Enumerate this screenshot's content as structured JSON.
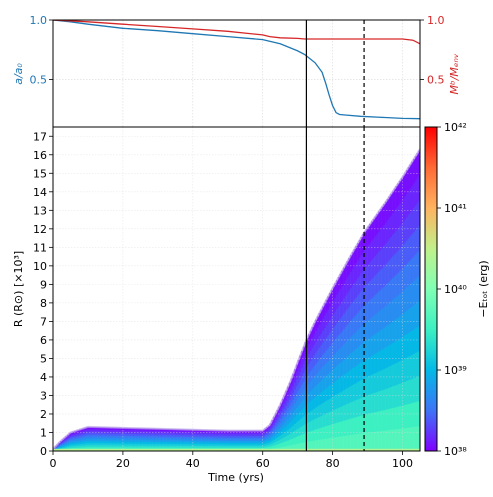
{
  "chart_data": [
    {
      "type": "line",
      "panel": "top",
      "xlim": [
        0,
        105
      ],
      "ylim_left": [
        0.1,
        1.0
      ],
      "ylim_right": [
        0.1,
        1.0
      ],
      "yticks_left": [
        "0.5",
        "1.0"
      ],
      "yticks_left_values": [
        0.5,
        1.0
      ],
      "yticks_right": [
        "0.5",
        "1.0"
      ],
      "yticks_right_values": [
        0.5,
        1.0
      ],
      "ylabel_left": "a/a₀",
      "ylabel_right": "Mᵇ/Mₑₙᵥ",
      "ylabel_left_color": "#1f77b4",
      "ylabel_right_color": "#d62728",
      "grid": true,
      "series": [
        {
          "color": "#1f77b4",
          "x": [
            0,
            5,
            10,
            20,
            30,
            40,
            50,
            60,
            65,
            70,
            72,
            75,
            77,
            78,
            79,
            80,
            81,
            82,
            84,
            88,
            95,
            100,
            105
          ],
          "y": [
            1.0,
            0.985,
            0.965,
            0.93,
            0.91,
            0.885,
            0.86,
            0.835,
            0.8,
            0.74,
            0.71,
            0.64,
            0.56,
            0.47,
            0.37,
            0.28,
            0.22,
            0.205,
            0.2,
            0.19,
            0.18,
            0.172,
            0.17
          ]
        },
        {
          "color": "#d62728",
          "x": [
            0,
            10,
            20,
            30,
            40,
            50,
            55,
            60,
            62,
            65,
            70,
            72,
            75,
            80,
            85,
            90,
            95,
            100,
            103,
            105
          ],
          "y": [
            1.0,
            0.985,
            0.965,
            0.945,
            0.925,
            0.905,
            0.89,
            0.875,
            0.86,
            0.85,
            0.845,
            0.84,
            0.84,
            0.84,
            0.84,
            0.84,
            0.84,
            0.84,
            0.83,
            0.8
          ]
        }
      ],
      "vlines": [
        {
          "x": 72.5,
          "style": "solid",
          "color": "#000000"
        },
        {
          "x": 89,
          "style": "dashed",
          "color": "#000000"
        }
      ]
    },
    {
      "type": "heatmap",
      "panel": "bottom",
      "xlabel": "Time (yrs)",
      "ylabel": "R (R⊙) [×10³]",
      "xlim": [
        0,
        105
      ],
      "ylim": [
        0,
        17.5
      ],
      "xticks": [
        "0",
        "20",
        "40",
        "60",
        "80",
        "100"
      ],
      "xticks_values": [
        0,
        20,
        40,
        60,
        80,
        100
      ],
      "yticks": [
        "0",
        "1",
        "2",
        "3",
        "4",
        "5",
        "6",
        "7",
        "8",
        "9",
        "10",
        "11",
        "12",
        "13",
        "14",
        "15",
        "16",
        "17"
      ],
      "yticks_values": [
        0,
        1,
        2,
        3,
        4,
        5,
        6,
        7,
        8,
        9,
        10,
        11,
        12,
        13,
        14,
        15,
        16,
        17
      ],
      "grid": true,
      "envelope_x": [
        0,
        2,
        5,
        10,
        20,
        30,
        40,
        50,
        60,
        62,
        65,
        68,
        70,
        72.5,
        75,
        80,
        85,
        89,
        95,
        100,
        105
      ],
      "envelope_r": [
        0.1,
        0.5,
        1.0,
        1.3,
        1.25,
        1.2,
        1.15,
        1.1,
        1.1,
        1.4,
        2.5,
        3.8,
        4.8,
        6.0,
        7.0,
        8.8,
        10.5,
        11.8,
        13.4,
        14.8,
        16.3
      ],
      "vlines": [
        {
          "x": 72.5,
          "style": "solid",
          "color": "#000000"
        },
        {
          "x": 89,
          "style": "dashed",
          "color": "#000000"
        }
      ],
      "colorbar": {
        "label": "−Eₜₒₜ (erg)",
        "scale": "log",
        "range": [
          1e+38,
          1e+42
        ],
        "ticks": [
          "10³⁸",
          "10³⁹",
          "10⁴⁰",
          "10⁴¹",
          "10⁴²"
        ],
        "tick_exponents": [
          38,
          39,
          40,
          41,
          42
        ],
        "colormap": "rainbow",
        "colors": [
          "#8000ff",
          "#3d74f6",
          "#04b9e6",
          "#3cf0c2",
          "#80ffb4",
          "#c1f08a",
          "#ffb360",
          "#ff6a35",
          "#ff0000"
        ]
      }
    }
  ]
}
